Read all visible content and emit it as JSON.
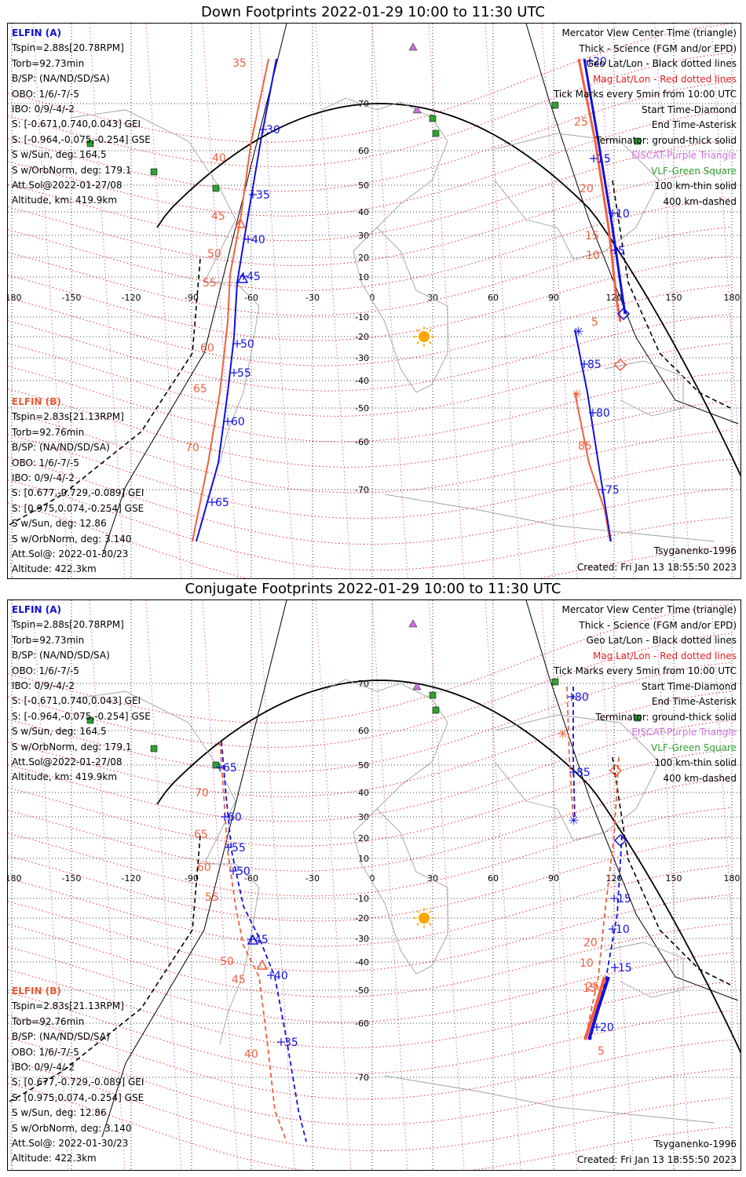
{
  "panels": [
    {
      "title": "Down Footprints 2022-01-29 10:00 to 11:30 UTC",
      "elfin_a": {
        "header": "ELFIN (A)",
        "lines": [
          "Tspin=2.88s[20.78RPM]",
          "Torb=92.73min",
          "B/SP: (NA/ND/SD/SA)",
          "OBO: 1/6/-7/-5",
          "IBO: 0/9/-4/-2",
          "S: [-0.671,0.740,0.043] GEI",
          "S: [-0.964,-0.075,-0.254] GSE",
          "S w/Sun, deg: 164.5",
          "S w/OrbNorm, deg: 179.1",
          "Att.Sol@2022-01-27/08",
          "Altitude, km: 419.9km"
        ]
      },
      "elfin_b": {
        "header": "ELFIN (B)",
        "lines": [
          "Tspin=2.83s[21.13RPM]",
          "Torb=92.76min",
          "B/SP: (NA/ND/SD/SA)",
          "OBO: 1/6/-7/-5",
          "IBO: 0/9/-4/-2",
          "S: [0.677,-0.729,-0.089] GEI",
          "S: [0.975,0.074,-0.254] GSE",
          "S w/Sun, deg: 12.86",
          "S w/OrbNorm, deg: 3.140",
          "Att.Sol@: 2022-01-30/23",
          "Altitude: 422.3km"
        ]
      },
      "legend": [
        {
          "text": "Mercator View Center Time (triangle)",
          "color": "#000000"
        },
        {
          "text": "Thick - Science (FGM and/or EPD)",
          "color": "#000000"
        },
        {
          "text": "Geo Lat/Lon - Black dotted lines",
          "color": "#000000"
        },
        {
          "text": "Mag Lat/Lon - Red dotted lines",
          "color": "#e02020"
        },
        {
          "text": "Tick Marks every 5min from 10:00 UTC",
          "color": "#000000"
        },
        {
          "text": "Start Time-Diamond",
          "color": "#000000"
        },
        {
          "text": "End Time-Asterisk",
          "color": "#000000"
        },
        {
          "text": "Terminator: ground-thick solid",
          "color": "#000000"
        },
        {
          "text": "EISCAT-Purple Triangle",
          "color": "#d070e0"
        },
        {
          "text": "VLF-Green Square",
          "color": "#30a030"
        },
        {
          "text": "100 km-thin solid",
          "color": "#000000"
        },
        {
          "text": "400 km-dashed",
          "color": "#000000"
        }
      ],
      "model": "Tsyganenko-1996",
      "created": "Created: Fri Jan 13 18:55:50 2023",
      "tick_labels_a": [
        "30",
        "35",
        "40",
        "45",
        "50",
        "55",
        "60",
        "65",
        "20",
        "15",
        "10",
        "5",
        "85",
        "80",
        "75"
      ],
      "tick_labels_b": [
        "35",
        "40",
        "45",
        "50",
        "55",
        "60",
        "65",
        "70",
        "25",
        "20",
        "15",
        "10",
        "5",
        "85"
      ]
    },
    {
      "title": "Conjugate Footprints 2022-01-29 10:00 to 11:30 UTC",
      "elfin_a": {
        "header": "ELFIN (A)",
        "lines": [
          "Tspin=2.88s[20.78RPM]",
          "Torb=92.73min",
          "B/SP: (NA/ND/SD/SA)",
          "OBO: 1/6/-7/-5",
          "IBO: 0/9/-4/-2",
          "S: [-0.671,0.740,0.043] GEI",
          "S: [-0.964,-0.075,-0.254] GSE",
          "S w/Sun, deg: 164.5",
          "S w/OrbNorm, deg: 179.1",
          "Att.Sol@2022-01-27/08",
          "Altitude, km: 419.9km"
        ]
      },
      "elfin_b": {
        "header": "ELFIN (B)",
        "lines": [
          "Tspin=2.83s[21.13RPM]",
          "Torb=92.76min",
          "B/SP: (NA/ND/SD/SA)",
          "OBO: 1/6/-7/-5",
          "IBO: 0/9/-4/-2",
          "S: [0.677,-0.729,-0.089] GEI",
          "S: [0.975,0.074,-0.254] GSE",
          "S w/Sun, deg: 12.86",
          "S w/OrbNorm, deg: 3.140",
          "Att.Sol@: 2022-01-30/23",
          "Altitude: 422.3km"
        ]
      },
      "legend": [
        {
          "text": "Mercator View Center Time (triangle)",
          "color": "#000000"
        },
        {
          "text": "Thick - Science (FGM and/or EPD)",
          "color": "#000000"
        },
        {
          "text": "Geo Lat/Lon - Black dotted lines",
          "color": "#000000"
        },
        {
          "text": "Mag Lat/Lon - Red dotted lines",
          "color": "#e02020"
        },
        {
          "text": "Tick Marks every 5min from 10:00 UTC",
          "color": "#000000"
        },
        {
          "text": "Start Time-Diamond",
          "color": "#000000"
        },
        {
          "text": "End Time-Asterisk",
          "color": "#000000"
        },
        {
          "text": "Terminator: ground-thick solid",
          "color": "#000000"
        },
        {
          "text": "EISCAT-Purple Triangle",
          "color": "#d070e0"
        },
        {
          "text": "VLF-Green Square",
          "color": "#30a030"
        },
        {
          "text": "100 km-thin solid",
          "color": "#000000"
        },
        {
          "text": "400 km-dashed",
          "color": "#000000"
        }
      ],
      "model": "Tsyganenko-1996",
      "created": "Created: Fri Jan 13 18:55:50 2023",
      "tick_labels_a": [
        "65",
        "60",
        "55",
        "50",
        "45",
        "40",
        "35",
        "80",
        "85",
        "15",
        "10",
        "15",
        "20"
      ],
      "tick_labels_b": [
        "70",
        "65",
        "60",
        "55",
        "50",
        "45",
        "40",
        "10",
        "15",
        "20",
        "25",
        "5"
      ]
    }
  ],
  "map": {
    "lon_labels": [
      "-180",
      "-150",
      "-120",
      "-90",
      "-60",
      "-30",
      "0",
      "30",
      "60",
      "90",
      "120",
      "150",
      "180"
    ],
    "lat_labels": [
      "70",
      "60",
      "50",
      "40",
      "30",
      "20",
      "10",
      "-10",
      "-20",
      "-30",
      "-40",
      "-50",
      "-60",
      "-70"
    ],
    "colors": {
      "elfin_a": "#1010e0",
      "elfin_b": "#f06040",
      "mag_grid": "#e02020",
      "eiscat": "#d070e0",
      "vlf": "#30a030",
      "sun": "#ffa500"
    }
  }
}
